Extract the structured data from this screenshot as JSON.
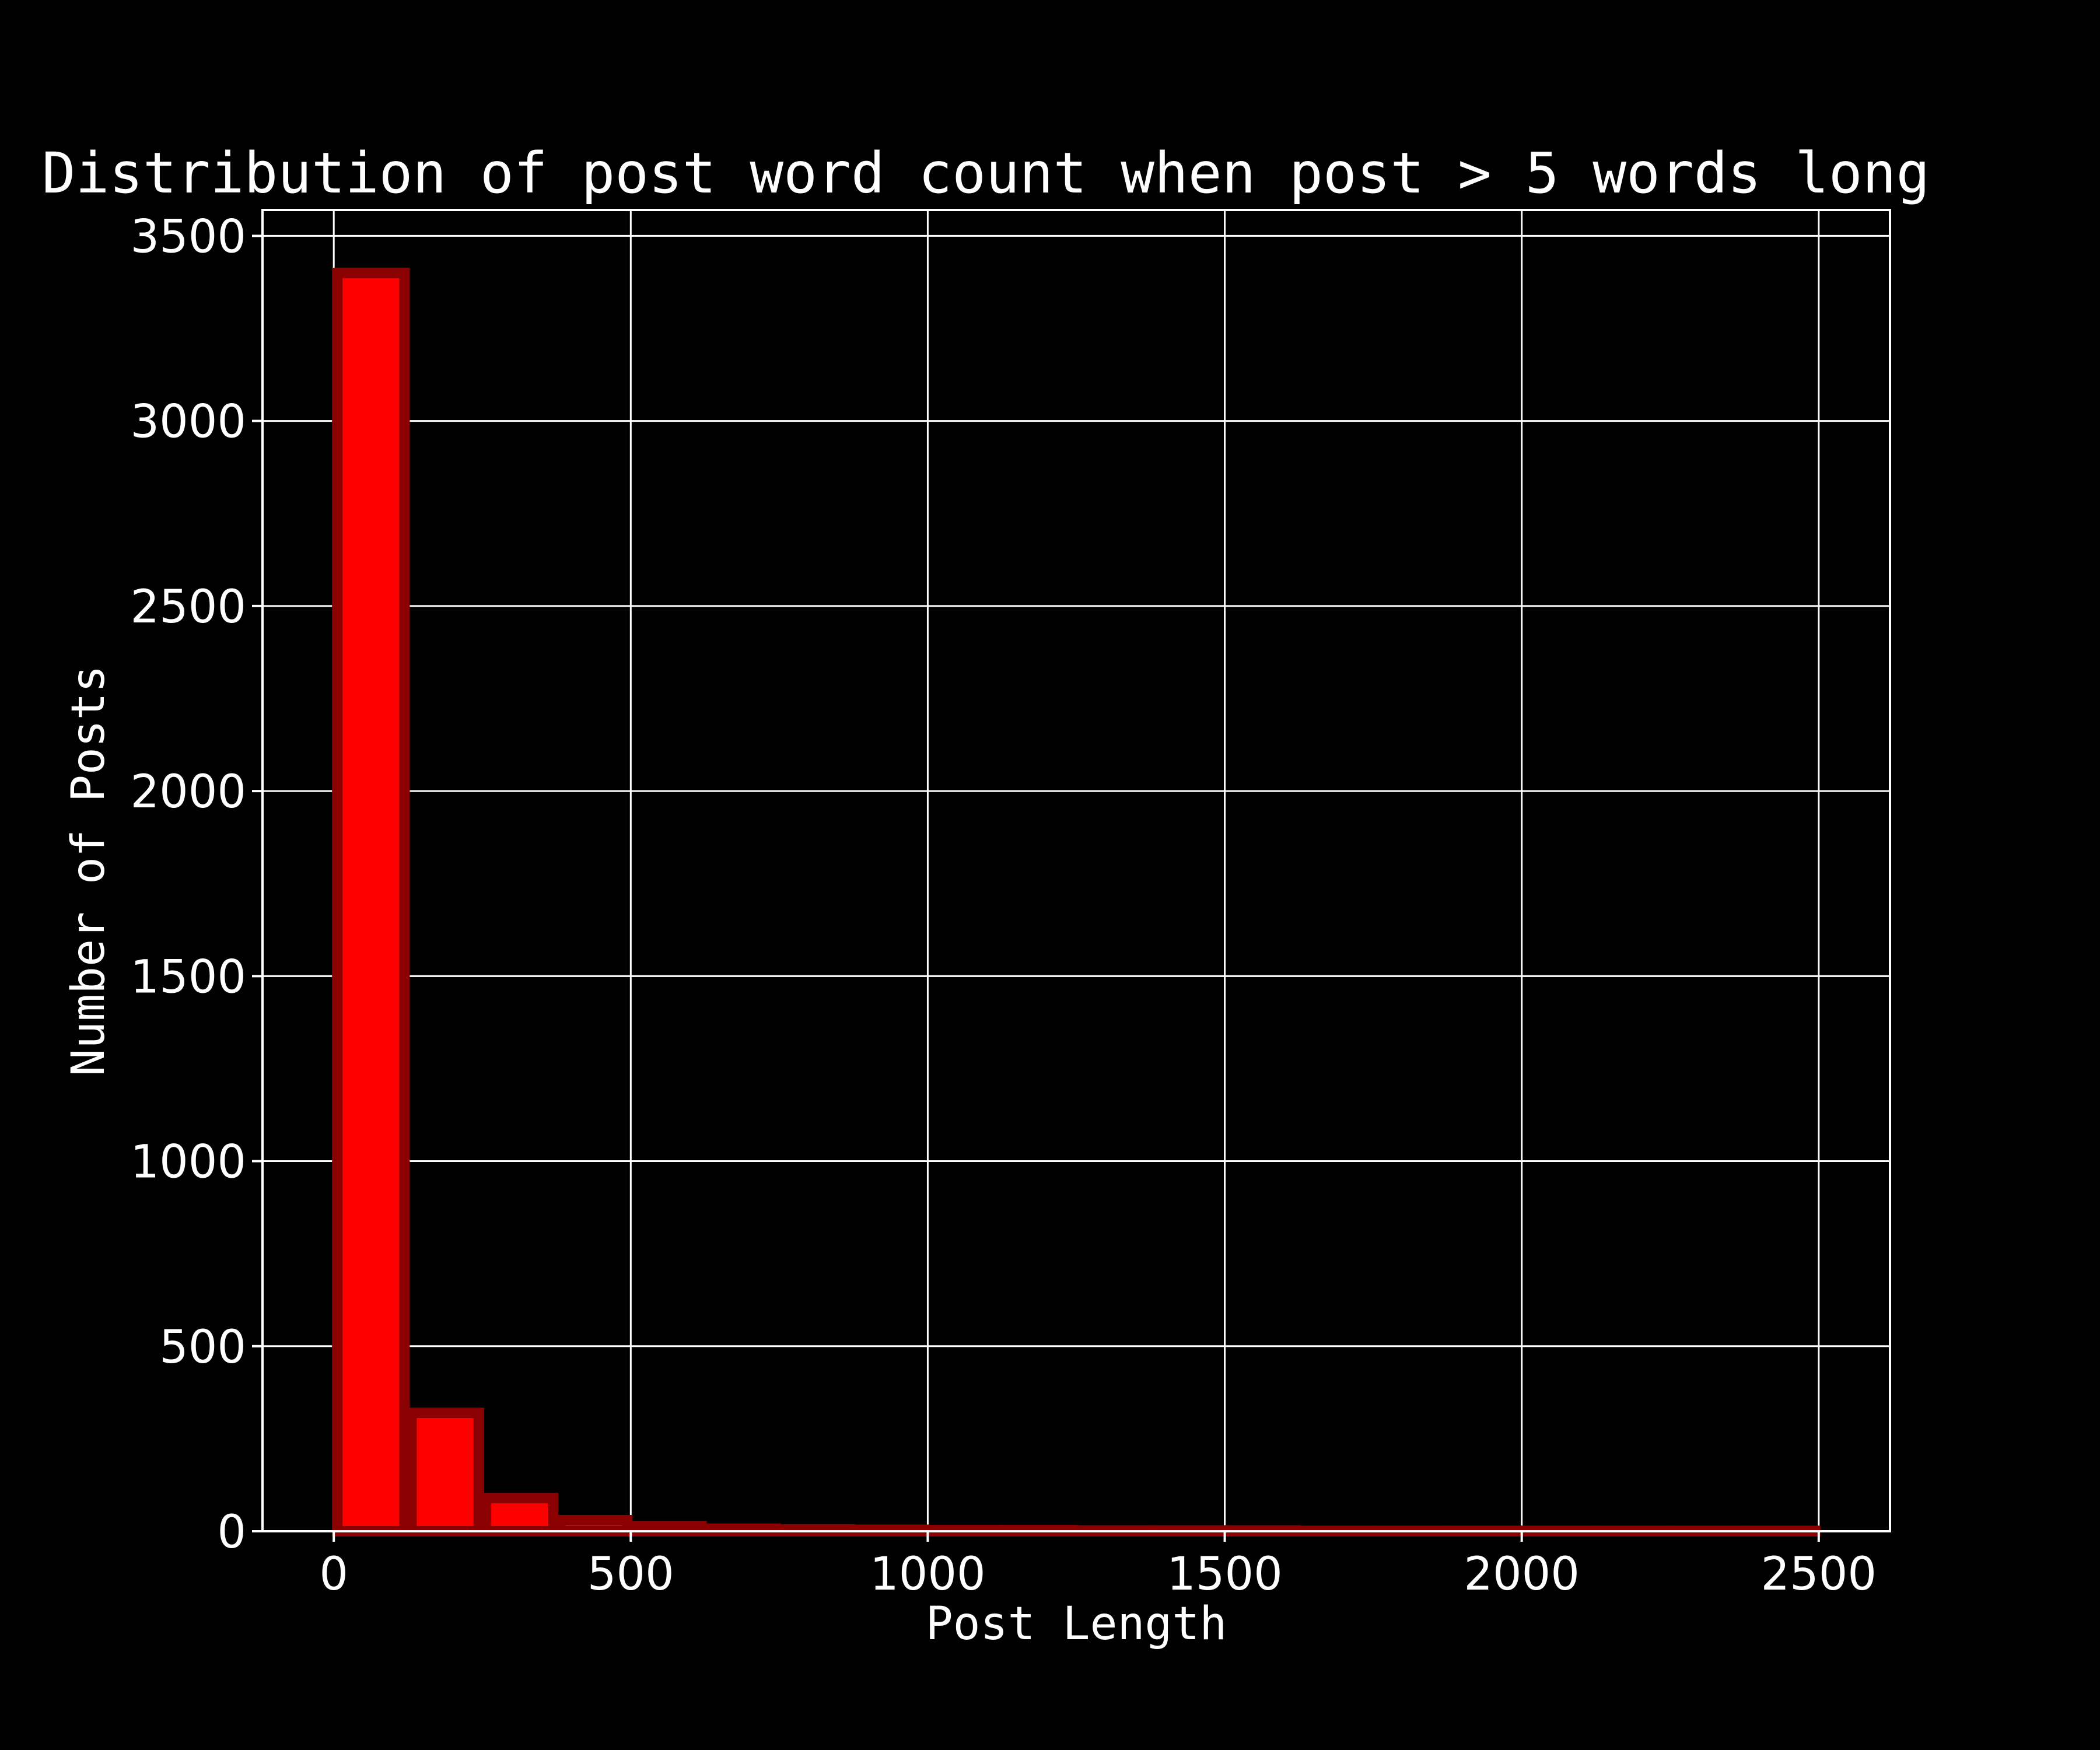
{
  "chart_data": {
    "type": "bar",
    "title": "Distribution of post word count when post > 5 words long",
    "xlabel": "Post Length",
    "ylabel": "Number of Posts",
    "xlim": [
      -120,
      2620
    ],
    "ylim": [
      0,
      3570
    ],
    "xticks": [
      0,
      500,
      1000,
      1500,
      2000,
      2500
    ],
    "yticks": [
      0,
      500,
      1000,
      1500,
      2000,
      2500,
      3000,
      3500
    ],
    "grid": true,
    "colors": {
      "background": "#000000",
      "bar_fill": "#ff0000",
      "bar_edge": "#8b0000",
      "text": "#ffffff",
      "grid": "#ffffff"
    },
    "bin_width": 125,
    "bins": [
      {
        "x0": 0,
        "x1": 125,
        "value": 3400
      },
      {
        "x0": 125,
        "x1": 250,
        "value": 320
      },
      {
        "x0": 250,
        "x1": 375,
        "value": 90
      },
      {
        "x0": 375,
        "x1": 500,
        "value": 30
      },
      {
        "x0": 500,
        "x1": 625,
        "value": 14
      },
      {
        "x0": 625,
        "x1": 750,
        "value": 7
      },
      {
        "x0": 750,
        "x1": 875,
        "value": 5
      },
      {
        "x0": 875,
        "x1": 1000,
        "value": 4
      },
      {
        "x0": 1000,
        "x1": 1125,
        "value": 3
      },
      {
        "x0": 1125,
        "x1": 1250,
        "value": 3
      },
      {
        "x0": 1250,
        "x1": 1375,
        "value": 2
      },
      {
        "x0": 1375,
        "x1": 1500,
        "value": 2
      },
      {
        "x0": 1500,
        "x1": 1625,
        "value": 2
      },
      {
        "x0": 1625,
        "x1": 1750,
        "value": 1
      },
      {
        "x0": 1750,
        "x1": 1875,
        "value": 1
      },
      {
        "x0": 1875,
        "x1": 2000,
        "value": 1
      },
      {
        "x0": 2000,
        "x1": 2125,
        "value": 1
      },
      {
        "x0": 2125,
        "x1": 2250,
        "value": 1
      },
      {
        "x0": 2250,
        "x1": 2375,
        "value": 1
      },
      {
        "x0": 2375,
        "x1": 2500,
        "value": 1
      }
    ]
  }
}
